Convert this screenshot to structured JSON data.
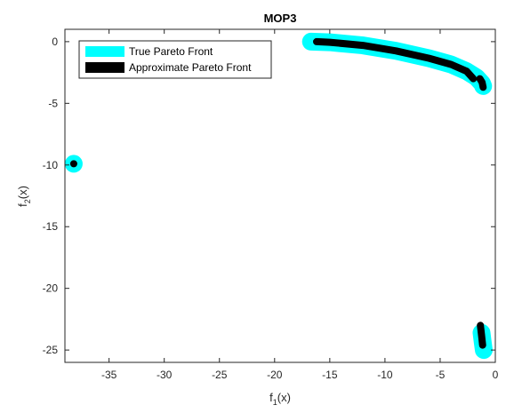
{
  "chart_data": {
    "type": "line",
    "title": "MOP3",
    "xlabel": {
      "base": "f",
      "sub": "1",
      "rest": "(x)"
    },
    "ylabel": {
      "base": "f",
      "sub": "2",
      "rest": "(x)"
    },
    "xlim": [
      -39,
      0
    ],
    "ylim": [
      -26,
      1
    ],
    "xticks": [
      -35,
      -30,
      -25,
      -20,
      -15,
      -10,
      -5,
      0
    ],
    "yticks": [
      0,
      -5,
      -10,
      -15,
      -20,
      -25
    ],
    "grid": false,
    "legend_position": "top-left",
    "series": [
      {
        "name": "True Pareto Front",
        "color": "#00FFFF",
        "segments": [
          [
            [
              -38.2,
              -9.9
            ]
          ],
          [
            [
              -16.7,
              0.0
            ],
            [
              -15.0,
              -0.05
            ],
            [
              -12.0,
              -0.3
            ],
            [
              -9.0,
              -0.75
            ],
            [
              -6.0,
              -1.35
            ],
            [
              -4.0,
              -1.85
            ],
            [
              -2.6,
              -2.4
            ],
            [
              -1.7,
              -2.9
            ],
            [
              -1.2,
              -3.4
            ],
            [
              -1.1,
              -3.6
            ]
          ],
          [
            [
              -1.25,
              -23.6
            ],
            [
              -1.15,
              -24.3
            ],
            [
              -1.05,
              -25.0
            ]
          ]
        ]
      },
      {
        "name": "Approximate Pareto Front",
        "color": "#000000",
        "segments": [
          [
            [
              -38.2,
              -9.9
            ]
          ],
          [
            [
              -16.2,
              0.0
            ],
            [
              -15.0,
              -0.05
            ],
            [
              -12.0,
              -0.3
            ],
            [
              -9.0,
              -0.75
            ],
            [
              -6.0,
              -1.35
            ],
            [
              -4.0,
              -1.85
            ],
            [
              -2.6,
              -2.4
            ],
            [
              -2.0,
              -3.0
            ]
          ],
          [
            [
              -1.4,
              -3.0
            ],
            [
              -1.2,
              -3.3
            ],
            [
              -1.1,
              -3.7
            ]
          ],
          [
            [
              -1.35,
              -23.0
            ],
            [
              -1.25,
              -23.8
            ],
            [
              -1.15,
              -24.6
            ]
          ]
        ]
      }
    ]
  }
}
